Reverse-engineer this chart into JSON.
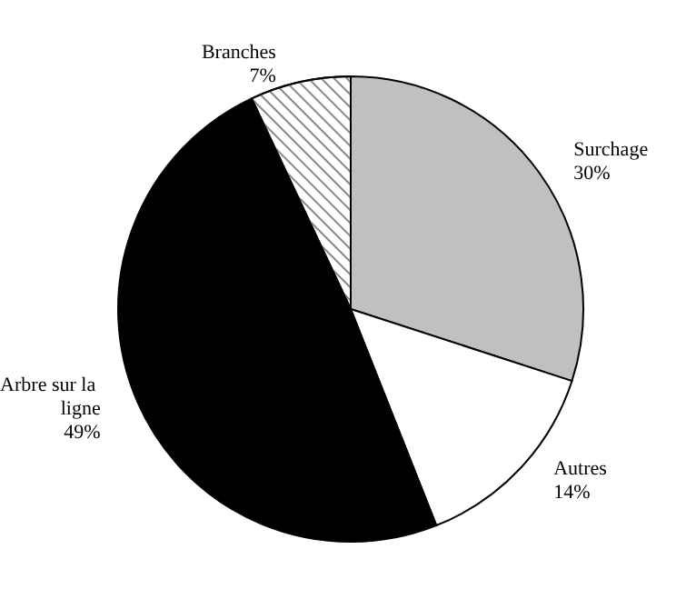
{
  "chart_data": {
    "type": "pie",
    "categories": [
      "Surchage",
      "Autres",
      "Arbre sur la ligne",
      "Branches"
    ],
    "values": [
      30,
      14,
      49,
      7
    ],
    "value_labels": [
      "30%",
      "14%",
      "49%",
      "7%"
    ],
    "colors": [
      "#c0c0c0",
      "#ffffff",
      "#000000",
      "#ffffff"
    ],
    "legend": false
  }
}
